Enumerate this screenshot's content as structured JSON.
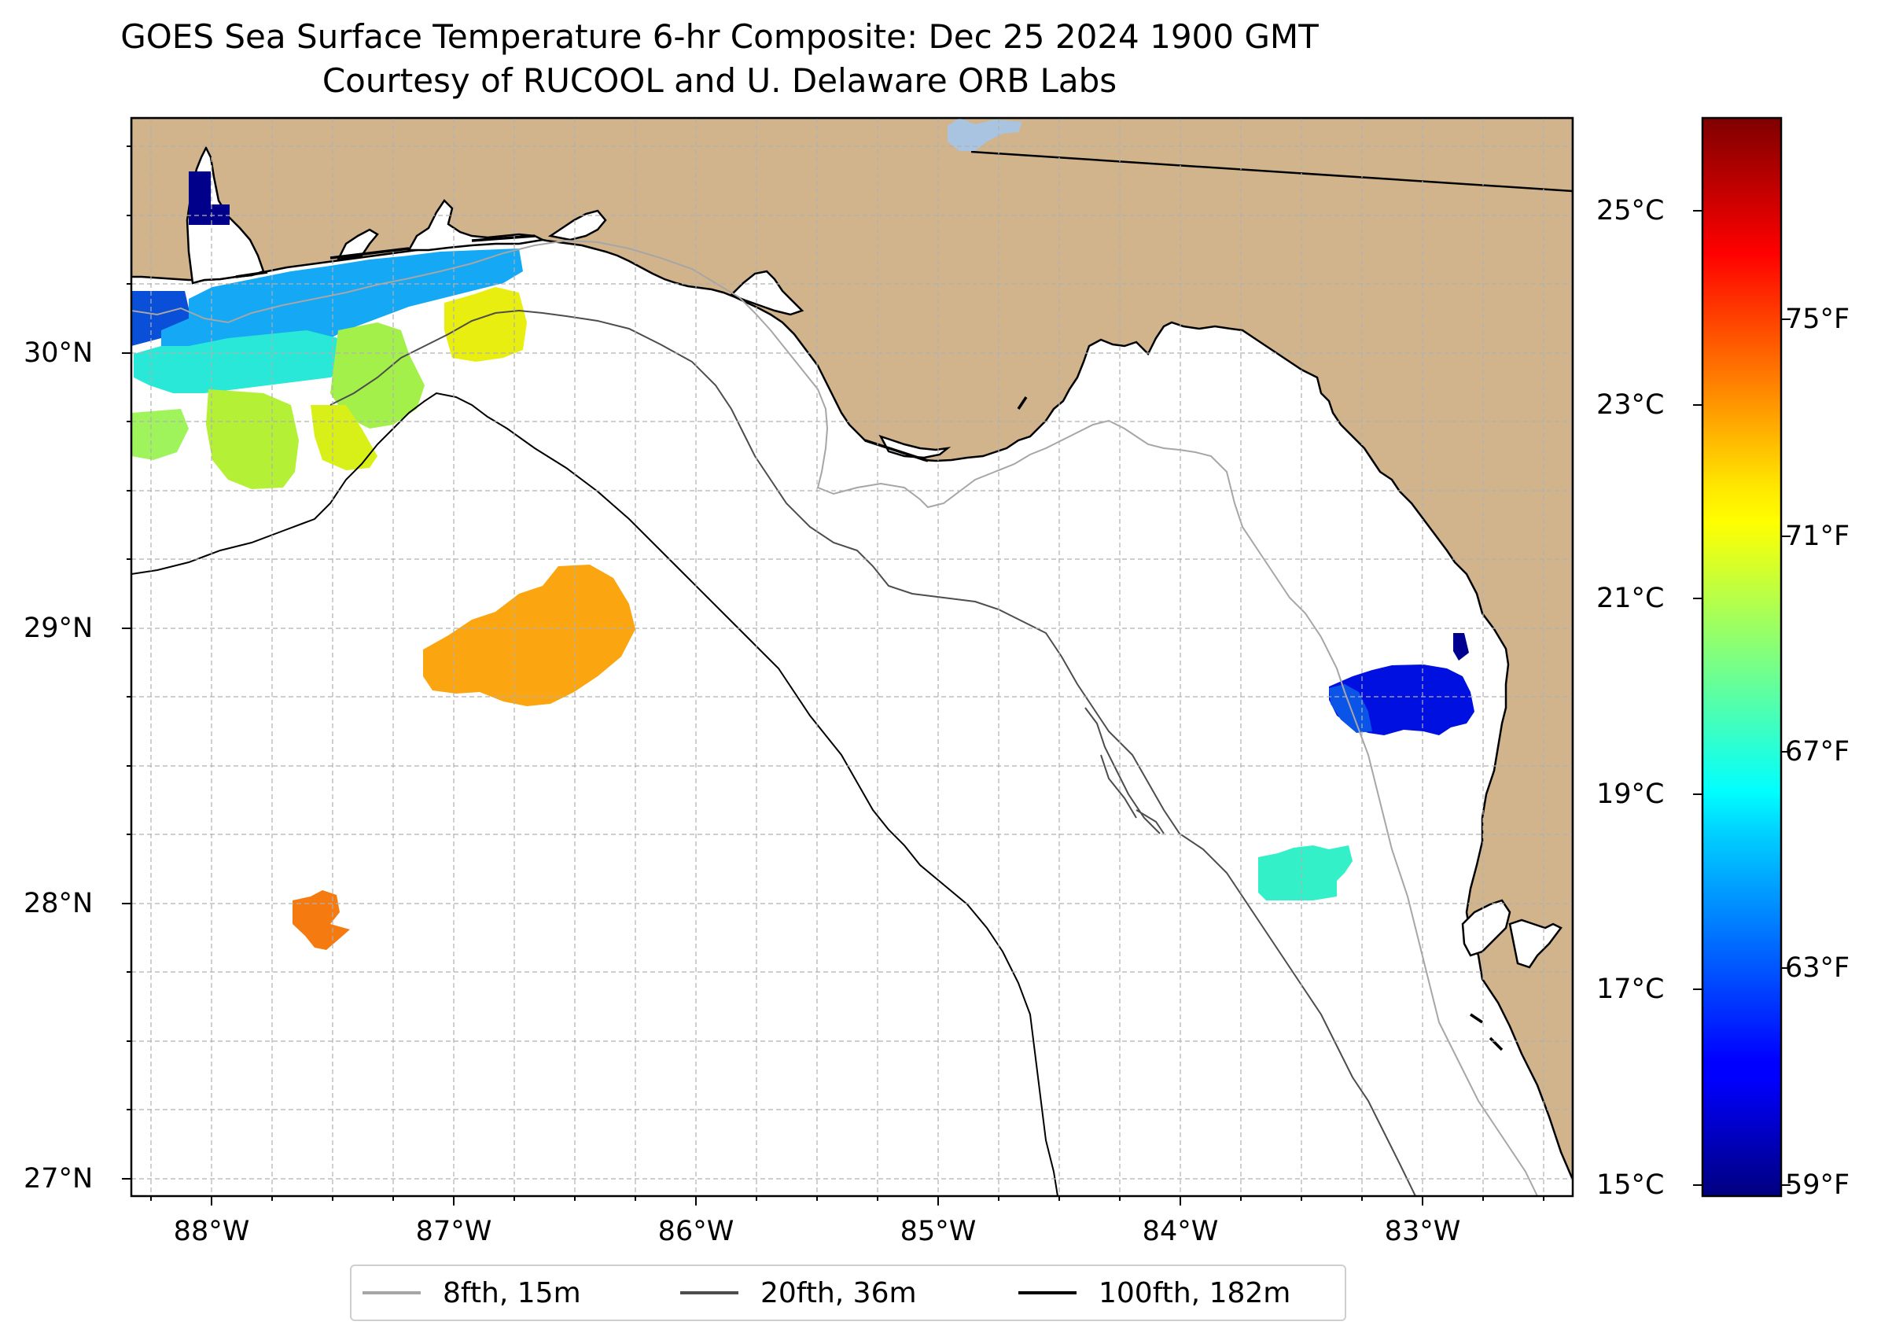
{
  "title": {
    "line1": "GOES Sea Surface Temperature 6-hr Composite: Dec 25 2024 1900 GMT",
    "line2": "Courtesy of RUCOOL and U. Delaware ORB Labs"
  },
  "map": {
    "extent_lon": [
      -88.33,
      -82.38
    ],
    "extent_lat": [
      26.94,
      30.85
    ],
    "lon_ticks": [
      "88°W",
      "87°W",
      "86°W",
      "85°W",
      "84°W",
      "83°W"
    ],
    "lat_ticks": [
      "27°N",
      "28°N",
      "29°N",
      "30°N"
    ],
    "land_color": "#d2b48c",
    "water_color": "#ffffff",
    "grid": true,
    "colorbar": {
      "colormap": "jet",
      "celsius_range": [
        15,
        26.5
      ],
      "celsius_ticks": [
        "15°C",
        "17°C",
        "19°C",
        "21°C",
        "23°C",
        "25°C"
      ],
      "fahrenheit_ticks": [
        "59°F",
        "63°F",
        "67°F",
        "71°F",
        "75°F"
      ]
    },
    "legend": [
      {
        "label": "8fth, 15m",
        "color": "#a6a6a6"
      },
      {
        "label": "20fth, 36m",
        "color": "#4d4d4d"
      },
      {
        "label": "100fth, 182m",
        "color": "#000000"
      }
    ]
  }
}
